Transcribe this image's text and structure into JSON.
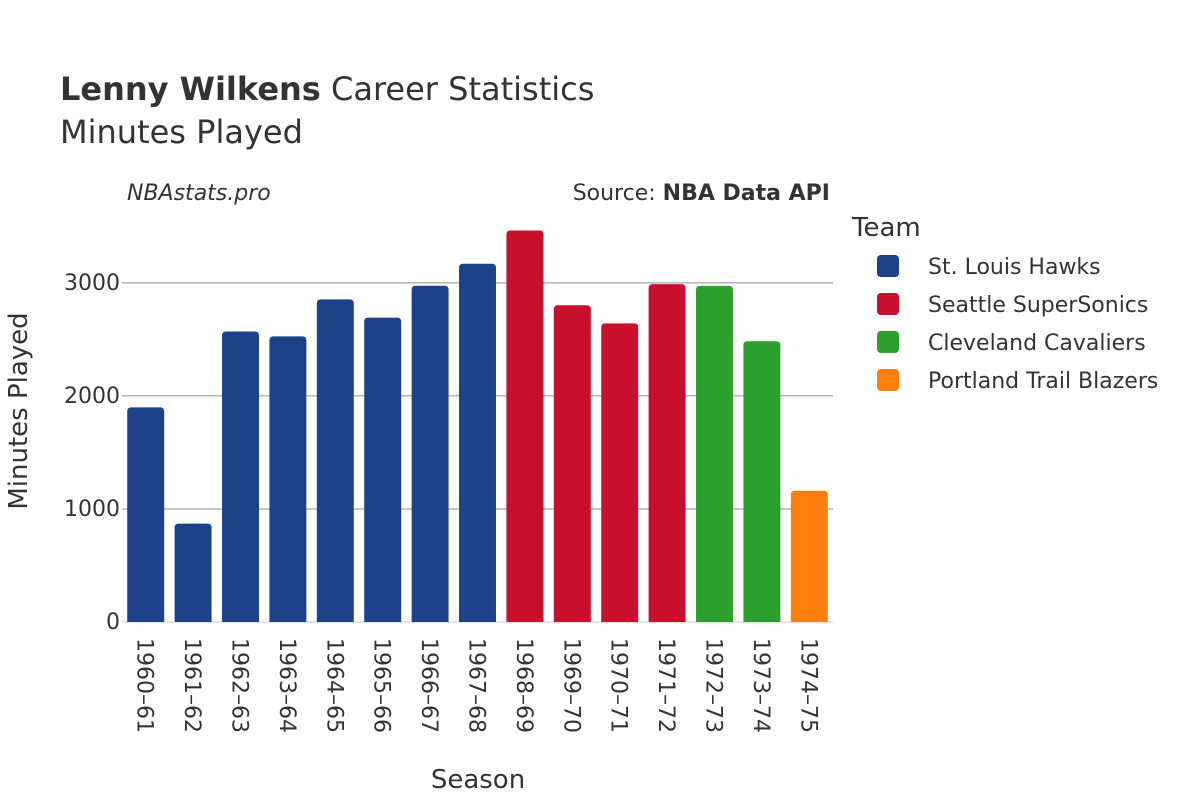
{
  "header": {
    "title_bold": "Lenny Wilkens",
    "title_rest": " Career Statistics",
    "subtitle": "Minutes Played",
    "watermark": "NBAstats.pro",
    "source_label": "Source: ",
    "source_name": "NBA Data API"
  },
  "legend": {
    "title": "Team",
    "items": [
      {
        "label": "St. Louis Hawks",
        "color": "#1d428a"
      },
      {
        "label": "Seattle SuperSonics",
        "color": "#c8102e"
      },
      {
        "label": "Cleveland Cavaliers",
        "color": "#2ca02c"
      },
      {
        "label": "Portland Trail Blazers",
        "color": "#ff7f0e"
      }
    ]
  },
  "chart_data": {
    "type": "bar",
    "title": "Lenny Wilkens Career Statistics",
    "subtitle": "Minutes Played",
    "xlabel": "Season",
    "ylabel": "Minutes Played",
    "ylim": [
      0,
      3600
    ],
    "yticks": [
      0,
      1000,
      2000,
      3000
    ],
    "grid": true,
    "legend_position": "right",
    "categories": [
      "1960–61",
      "1961–62",
      "1962–63",
      "1963–64",
      "1964–65",
      "1965–66",
      "1966–67",
      "1967–68",
      "1968–69",
      "1969–70",
      "1970–71",
      "1971–72",
      "1972–73",
      "1973–74",
      "1974–75"
    ],
    "values": [
      1898,
      870,
      2569,
      2526,
      2854,
      2692,
      2974,
      3169,
      3463,
      2802,
      2641,
      2989,
      2973,
      2483,
      1161
    ],
    "teams": [
      "St. Louis Hawks",
      "St. Louis Hawks",
      "St. Louis Hawks",
      "St. Louis Hawks",
      "St. Louis Hawks",
      "St. Louis Hawks",
      "St. Louis Hawks",
      "St. Louis Hawks",
      "Seattle SuperSonics",
      "Seattle SuperSonics",
      "Seattle SuperSonics",
      "Seattle SuperSonics",
      "Cleveland Cavaliers",
      "Cleveland Cavaliers",
      "Portland Trail Blazers"
    ]
  }
}
